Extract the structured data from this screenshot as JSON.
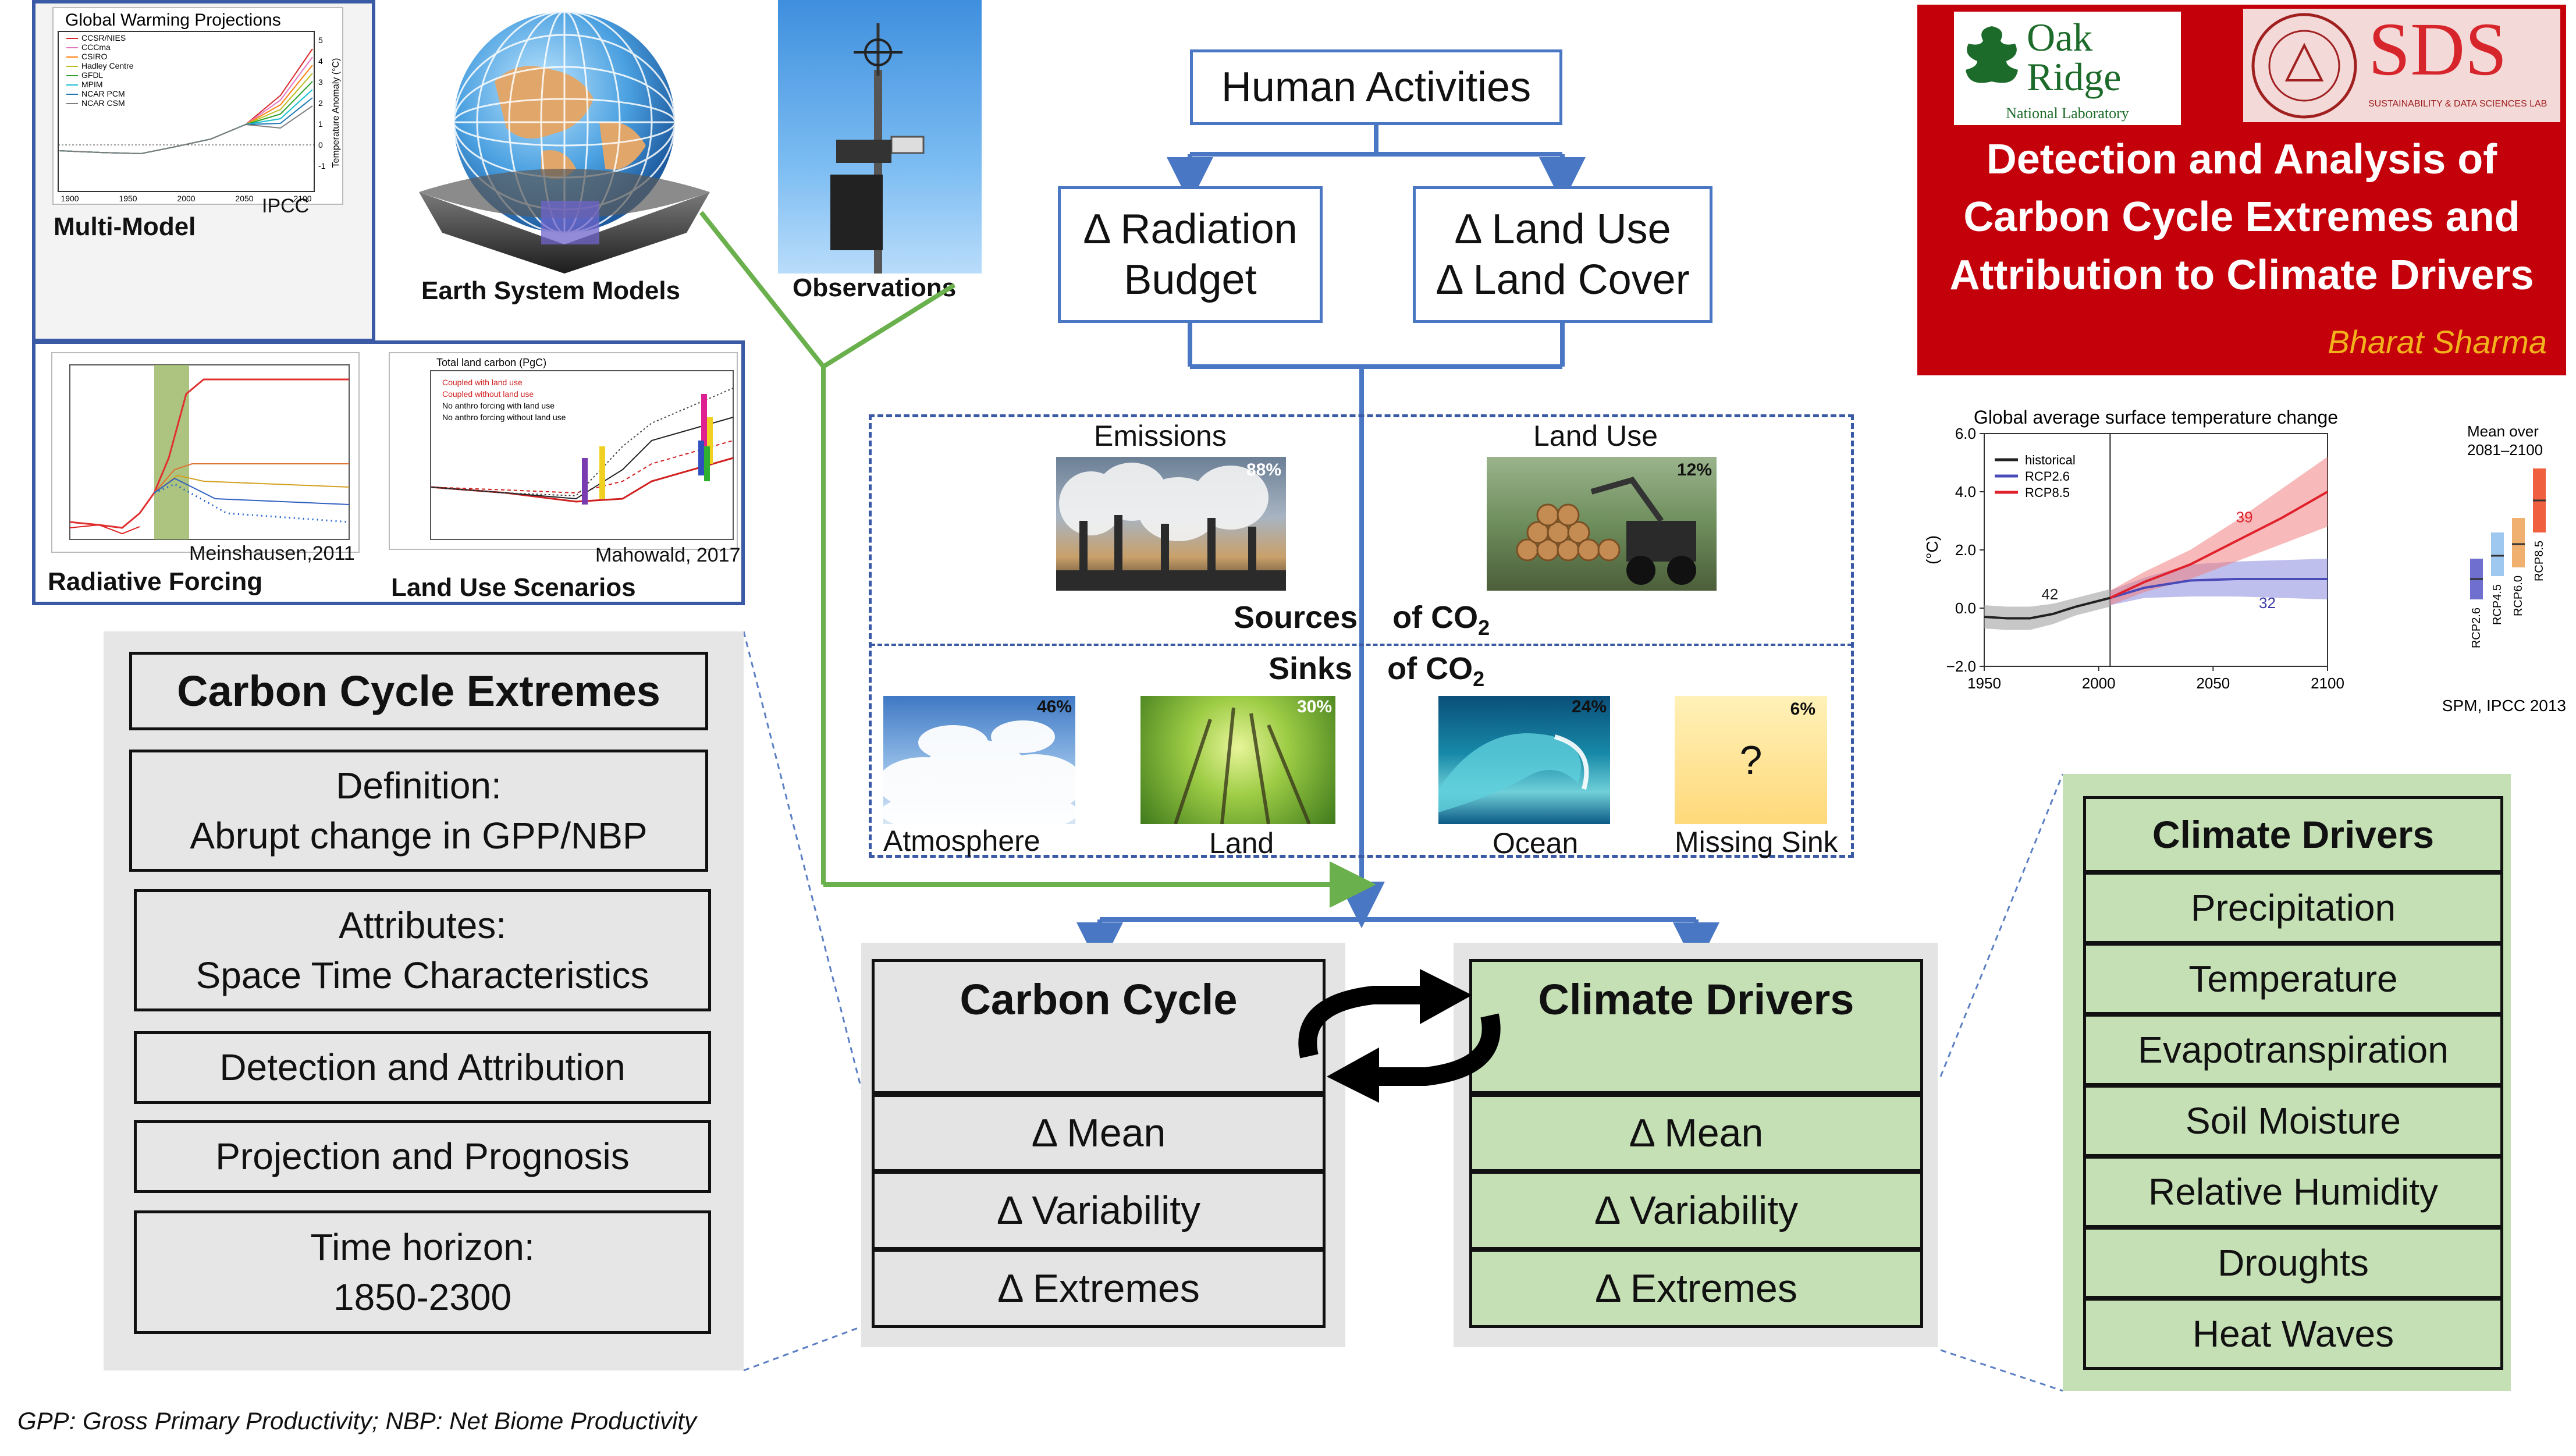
{
  "human_activities": "Human Activities",
  "radiation_budget": [
    "Δ Radiation",
    "Budget"
  ],
  "land_use_cover": [
    "Δ Land Use",
    "Δ Land Cover"
  ],
  "sources": {
    "label_a": "Sources",
    "label_b": "of CO",
    "sub": "2",
    "emissions": {
      "label": "Emissions",
      "pct": "88%"
    },
    "land_use": {
      "label": "Land Use",
      "pct": "12%"
    }
  },
  "sinks": {
    "label_a": "Sinks",
    "label_b": "of CO",
    "sub": "2",
    "items": [
      {
        "label": "Atmosphere",
        "pct": "46%"
      },
      {
        "label": "Land",
        "pct": "30%"
      },
      {
        "label": "Ocean",
        "pct": "24%"
      },
      {
        "label": "Missing Sink",
        "pct": "6%",
        "mark": "?"
      }
    ]
  },
  "images": {
    "multi_model": {
      "caption": "Multi-Model",
      "title": "Global Warming Projections",
      "credit": "IPCC",
      "ylabel": "Temperature Anomaly (°C)",
      "xticks": [
        "1900",
        "1950",
        "2000",
        "2050",
        "2100"
      ],
      "yticks": [
        "5",
        "4",
        "3",
        "2",
        "1",
        "0",
        "-1"
      ],
      "legend": [
        "CCSR/NIES",
        "CCCma",
        "CSIRO",
        "Hadley Centre",
        "GFDL",
        "MPIM",
        "NCAR PCM",
        "NCAR CSM"
      ],
      "legend_colors": [
        "#d62728",
        "#e377c2",
        "#ff7f0e",
        "#bcbd22",
        "#2ca02c",
        "#17becf",
        "#1f77b4",
        "#7f7f7f"
      ]
    },
    "esm": {
      "caption": "Earth System Models"
    },
    "observations": {
      "caption": "Observations"
    },
    "radiative": {
      "caption": "Radiative Forcing",
      "credit": "Meinshausen,2011"
    },
    "land_use_scen": {
      "caption": "Land Use Scenarios",
      "credit": "Mahowald, 2017",
      "title": "Total land carbon (PgC)",
      "legend": [
        "Coupled with land use",
        "Coupled without land use",
        "No anthro forcing with land use",
        "No anthro forcing without land use"
      ]
    }
  },
  "left_list": {
    "title": "Carbon Cycle Extremes",
    "items": [
      [
        "Definition:",
        "Abrupt change in GPP/NBP"
      ],
      [
        "Attributes:",
        "Space Time Characteristics"
      ],
      [
        "Detection and Attribution"
      ],
      [
        "Projection and Prognosis"
      ],
      [
        "Time horizon:",
        "1850-2300"
      ]
    ]
  },
  "carbon_cycle": {
    "title": "Carbon Cycle",
    "rows": [
      "Δ Mean",
      "Δ Variability",
      "Δ Extremes"
    ]
  },
  "climate_drivers_center": {
    "title": "Climate Drivers",
    "rows": [
      "Δ Mean",
      "Δ Variability",
      "Δ Extremes"
    ]
  },
  "climate_drivers_list": {
    "title": "Climate Drivers",
    "items": [
      "Precipitation",
      "Temperature",
      "Evapotranspiration",
      "Soil Moisture",
      "Relative Humidity",
      "Droughts",
      "Heat Waves"
    ]
  },
  "title_card": {
    "org1": "Oak Ridge",
    "org1_sub": "National Laboratory",
    "org2": "SDS",
    "org2_sub": "SUSTAINABILITY & DATA SCIENCES LAB",
    "title_lines": [
      "Detection and Analysis of",
      "Carbon Cycle Extremes and",
      "Attribution to Climate Drivers"
    ],
    "author": "Bharat  Sharma"
  },
  "footnote": "GPP: Gross Primary Productivity; NBP: Net Biome Productivity",
  "chart_data": {
    "type": "line",
    "title": "Global average surface temperature change",
    "ylabel": "(°C)",
    "xlim": [
      1950,
      2100
    ],
    "ylim": [
      -2.0,
      6.0
    ],
    "xticks": [
      1950,
      2000,
      2050,
      2100
    ],
    "yticks": [
      -2.0,
      0.0,
      2.0,
      4.0,
      6.0
    ],
    "xtick_labels": [
      "1950",
      "2000",
      "2050",
      "2100"
    ],
    "ytick_labels": [
      "−2.0",
      "0.0",
      "2.0",
      "4.0",
      "6.0"
    ],
    "series": [
      {
        "name": "historical",
        "color": "#222222",
        "x": [
          1950,
          1960,
          1970,
          1980,
          1990,
          2000,
          2005
        ],
        "y": [
          -0.3,
          -0.35,
          -0.35,
          -0.2,
          0.05,
          0.25,
          0.35
        ],
        "lower": [
          -0.7,
          -0.75,
          -0.75,
          -0.55,
          -0.25,
          -0.05,
          0.05
        ],
        "upper": [
          0.1,
          0.05,
          0.05,
          0.15,
          0.35,
          0.55,
          0.65
        ],
        "label": "42"
      },
      {
        "name": "RCP2.6",
        "color": "#4a4ab8",
        "band": "#8b8be0",
        "x": [
          2005,
          2020,
          2040,
          2060,
          2080,
          2100
        ],
        "y": [
          0.35,
          0.7,
          0.95,
          1.0,
          1.0,
          1.0
        ],
        "lower": [
          0.1,
          0.35,
          0.4,
          0.4,
          0.35,
          0.3
        ],
        "upper": [
          0.6,
          1.05,
          1.5,
          1.6,
          1.65,
          1.7
        ],
        "label": "32"
      },
      {
        "name": "RCP8.5",
        "color": "#e0202a",
        "band": "#f08080",
        "x": [
          2005,
          2020,
          2040,
          2060,
          2080,
          2100
        ],
        "y": [
          0.35,
          0.9,
          1.5,
          2.3,
          3.1,
          4.0
        ],
        "lower": [
          0.1,
          0.55,
          1.0,
          1.6,
          2.2,
          2.8
        ],
        "upper": [
          0.6,
          1.25,
          2.0,
          3.0,
          4.1,
          5.2
        ],
        "label": "39"
      }
    ],
    "mean_over": {
      "label_lines": [
        "Mean over",
        "2081–2100"
      ],
      "bars": [
        {
          "name": "RCP2.6",
          "low": 0.3,
          "mean": 1.0,
          "high": 1.7,
          "color": "#6f6fd0"
        },
        {
          "name": "RCP4.5",
          "low": 1.1,
          "mean": 1.8,
          "high": 2.6,
          "color": "#9ec8f0"
        },
        {
          "name": "RCP6.0",
          "low": 1.4,
          "mean": 2.2,
          "high": 3.1,
          "color": "#f0b070"
        },
        {
          "name": "RCP8.5",
          "low": 2.6,
          "mean": 3.7,
          "high": 4.8,
          "color": "#f06040"
        }
      ]
    },
    "credit": "SPM, IPCC 2013"
  }
}
